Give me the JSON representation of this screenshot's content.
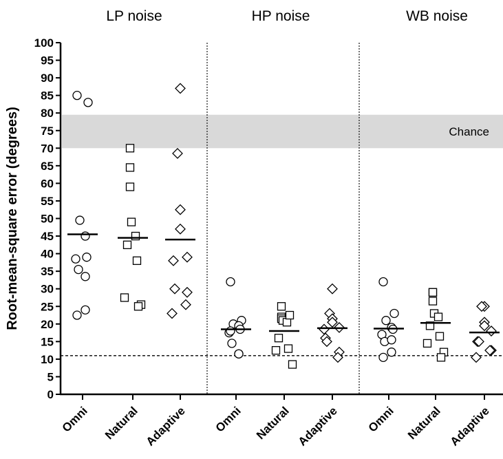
{
  "chart_data": {
    "type": "scatter",
    "ylabel": "Root-mean-square error (degrees)",
    "ylim": [
      0,
      100
    ],
    "yticks": [
      0,
      5,
      10,
      15,
      20,
      25,
      30,
      35,
      40,
      45,
      50,
      55,
      60,
      65,
      70,
      75,
      80,
      85,
      90,
      95,
      100
    ],
    "reference_line": {
      "y": 11,
      "style": "dashed"
    },
    "chance_band": {
      "from": 70,
      "to": 79.5,
      "label": "Chance"
    },
    "groups": [
      {
        "title": "LP noise",
        "conditions": [
          {
            "name": "Omni",
            "marker": "circle",
            "mean": 45.5,
            "values": [
              85,
              83,
              49.5,
              45,
              39,
              38.5,
              35.5,
              33.5,
              24,
              22.5
            ]
          },
          {
            "name": "Natural",
            "marker": "square",
            "mean": 44.5,
            "values": [
              70,
              64.5,
              59,
              49,
              45,
              42.5,
              38,
              27.5,
              25.5,
              25
            ]
          },
          {
            "name": "Adaptive",
            "marker": "diamond",
            "mean": 44,
            "values": [
              87,
              68.5,
              52.5,
              47,
              39,
              38,
              30,
              29,
              25.5,
              23
            ]
          }
        ]
      },
      {
        "title": "HP noise",
        "conditions": [
          {
            "name": "Omni",
            "marker": "circle",
            "mean": 18.5,
            "values": [
              32,
              21,
              20,
              19.5,
              18.5,
              17.5,
              14.5,
              11.5,
              11.5,
              18
            ]
          },
          {
            "name": "Natural",
            "marker": "square",
            "mean": 18,
            "values": [
              25,
              22,
              21.5,
              21,
              20.5,
              16,
              13,
              12.5,
              8.5,
              22.5
            ]
          },
          {
            "name": "Adaptive",
            "marker": "diamond",
            "mean": 18.8,
            "values": [
              30,
              23,
              21.5,
              20.5,
              19,
              16,
              15,
              12,
              10.5,
              18.5
            ]
          }
        ]
      },
      {
        "title": "WB noise",
        "conditions": [
          {
            "name": "Omni",
            "marker": "circle",
            "mean": 18.7,
            "values": [
              32,
              23,
              21,
              19,
              18.5,
              17,
              15,
              15.5,
              12,
              10.5
            ]
          },
          {
            "name": "Natural",
            "marker": "square",
            "mean": 20.3,
            "values": [
              29,
              29,
              26.5,
              23,
              22,
              19.5,
              16.5,
              14.5,
              12,
              10.5
            ]
          },
          {
            "name": "Adaptive",
            "marker": "diamond",
            "mean": 17.6,
            "values": [
              25,
              25,
              20.5,
              19.5,
              18,
              15,
              15,
              12.5,
              12.5,
              10.5
            ]
          }
        ]
      }
    ]
  }
}
